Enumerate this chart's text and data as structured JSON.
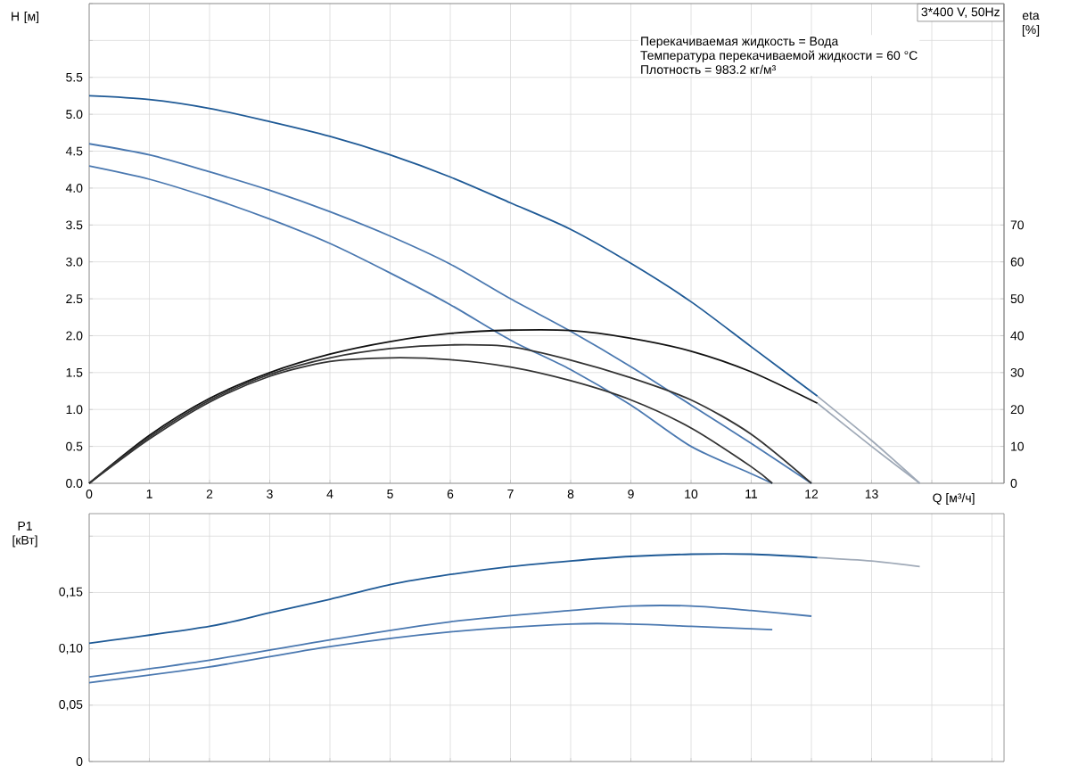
{
  "chart_data": [
    {
      "type": "line",
      "title": "3*400 V, 50Hz",
      "xlabel": "Q [м³/ч]",
      "ylabel": "H [м]",
      "y2label": "eta [%]",
      "annotations": [
        "Перекачиваемая жидкость = Вода",
        "Температура перекачиваемой жидкости = 60 °C",
        "Плотность = 983.2 кг/м³"
      ],
      "xlim": [
        0,
        15.2
      ],
      "xticks": [
        0,
        1,
        2,
        3,
        4,
        5,
        6,
        7,
        8,
        9,
        10,
        11,
        12,
        13,
        {
          "value": 14,
          "label": null
        },
        {
          "value": 15,
          "label": null
        }
      ],
      "ylim": [
        0,
        6.5
      ],
      "yticks": [
        {
          "value": 0,
          "label": "0.0"
        },
        0.5,
        {
          "value": 1,
          "label": "1.0"
        },
        1.5,
        {
          "value": 2,
          "label": "2.0"
        },
        2.5,
        {
          "value": 3,
          "label": "3.0"
        },
        3.5,
        {
          "value": 4,
          "label": "4.0"
        },
        4.5,
        {
          "value": 5,
          "label": "5.0"
        },
        5.5,
        {
          "value": 6,
          "label": null
        },
        {
          "value": 6.5,
          "label": null
        }
      ],
      "y2lim": [
        0,
        130
      ],
      "y2ticks": [
        0,
        10,
        20,
        30,
        40,
        50,
        60,
        70
      ],
      "grid": true,
      "series": [
        {
          "color": "#1f5a96",
          "x": [
            0,
            1,
            2,
            3,
            4,
            5,
            6,
            7,
            8,
            9,
            10,
            11,
            12.1
          ],
          "values": [
            5.25,
            5.2,
            5.08,
            4.9,
            4.7,
            4.45,
            4.15,
            3.8,
            3.44,
            2.98,
            2.46,
            1.85,
            1.18
          ]
        },
        {
          "color": "#a0aab8",
          "x": [
            12.1,
            13,
            13.8
          ],
          "values": [
            1.18,
            0.58,
            0
          ]
        },
        {
          "color": "#4a78b0",
          "x": [
            0,
            1,
            2,
            3,
            4,
            5,
            6,
            7,
            8,
            9,
            10,
            11,
            12
          ],
          "values": [
            4.6,
            4.45,
            4.22,
            3.97,
            3.68,
            3.35,
            2.97,
            2.5,
            2.06,
            1.58,
            1.06,
            0.54,
            0
          ]
        },
        {
          "color": "#4a78b0",
          "x": [
            0,
            1,
            2,
            3,
            4,
            5,
            6,
            7,
            8,
            9,
            10,
            11,
            11.35
          ],
          "values": [
            4.3,
            4.12,
            3.87,
            3.58,
            3.25,
            2.85,
            2.42,
            1.94,
            1.54,
            1.06,
            0.5,
            0.13,
            0
          ]
        },
        {
          "color": "#111111",
          "axis": "y2",
          "x": [
            0,
            1,
            2,
            3,
            4,
            5,
            6,
            7,
            8,
            9,
            10,
            11,
            12.1
          ],
          "values": [
            0,
            13,
            23,
            30,
            35,
            38.4,
            40.6,
            41.5,
            41.4,
            39.3,
            35.8,
            30.2,
            21.7
          ]
        },
        {
          "color": "#a0aab8",
          "axis": "y2",
          "x": [
            12.1,
            13,
            13.8
          ],
          "values": [
            21.7,
            10,
            0
          ]
        },
        {
          "color": "#333333",
          "axis": "y2",
          "x": [
            0,
            1,
            2,
            3,
            4,
            5,
            6,
            7,
            8,
            9,
            10,
            11,
            12
          ],
          "values": [
            0,
            12.5,
            22.5,
            29.5,
            34,
            36.5,
            37.5,
            37,
            33.4,
            28.6,
            22.6,
            13.3,
            0
          ]
        },
        {
          "color": "#333333",
          "axis": "y2",
          "x": [
            0,
            1,
            2,
            3,
            4,
            5,
            6,
            7,
            8,
            9,
            10,
            11,
            11.35
          ],
          "values": [
            0,
            12,
            22,
            29,
            33,
            34,
            33.5,
            31.5,
            27.8,
            22.6,
            15,
            4.5,
            0
          ]
        }
      ]
    },
    {
      "type": "line",
      "ylabel": "P1 [кВт]",
      "tick_labels": "y",
      "grid": true,
      "xlim": [
        0,
        15.2
      ],
      "xticks": [
        0,
        1,
        2,
        3,
        4,
        5,
        6,
        7,
        8,
        9,
        10,
        11,
        12,
        13,
        14,
        15
      ],
      "ylim": [
        0,
        0.22
      ],
      "yticks": [
        0,
        {
          "value": 0.05,
          "label": "0,05"
        },
        {
          "value": 0.1,
          "label": "0,10"
        },
        {
          "value": 0.15,
          "label": "0,15"
        },
        {
          "value": 0.2,
          "label": null
        }
      ],
      "series": [
        {
          "color": "#1f5a96",
          "x": [
            0,
            2,
            3,
            4,
            5,
            6,
            7,
            8,
            9,
            10,
            11,
            12.1
          ],
          "values": [
            0.105,
            0.12,
            0.132,
            0.144,
            0.157,
            0.166,
            0.173,
            0.178,
            0.182,
            0.184,
            0.184,
            0.181
          ]
        },
        {
          "color": "#a0aab8",
          "x": [
            12.1,
            13,
            13.8
          ],
          "values": [
            0.181,
            0.178,
            0.173
          ]
        },
        {
          "color": "#4a78b0",
          "x": [
            0,
            2,
            4,
            6,
            8,
            9,
            10,
            11,
            12
          ],
          "values": [
            0.075,
            0.09,
            0.108,
            0.124,
            0.134,
            0.138,
            0.138,
            0.134,
            0.129
          ]
        },
        {
          "color": "#4a78b0",
          "x": [
            0,
            2,
            4,
            6,
            8,
            9,
            10,
            11.35
          ],
          "values": [
            0.07,
            0.084,
            0.102,
            0.115,
            0.122,
            0.122,
            0.12,
            0.117
          ]
        }
      ]
    }
  ]
}
